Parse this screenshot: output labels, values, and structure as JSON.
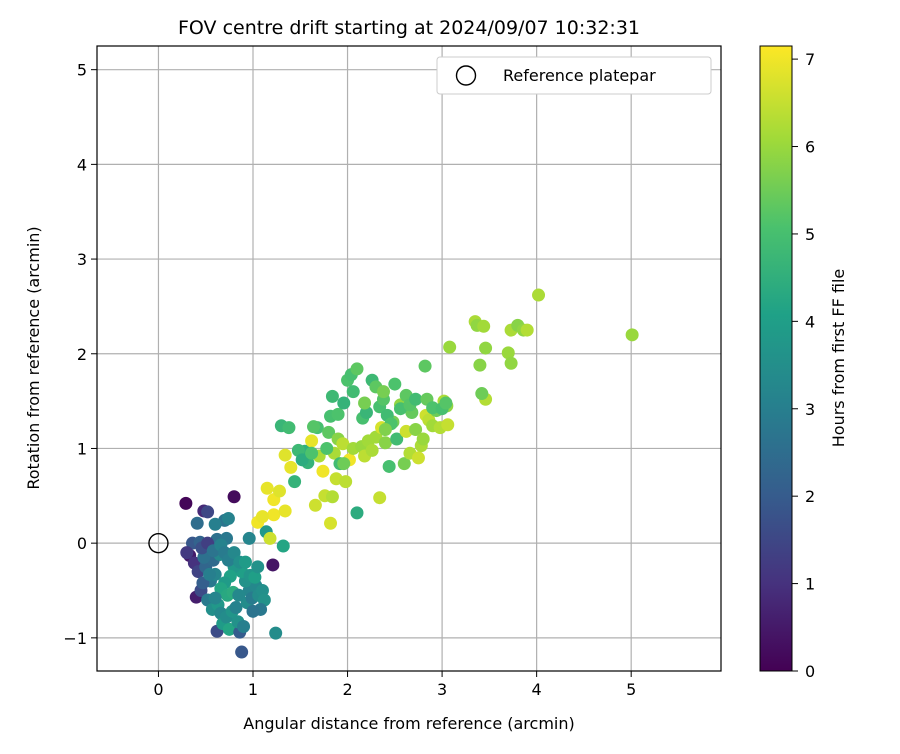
{
  "chart_data": {
    "type": "scatter",
    "title": "FOV centre drift starting at 2024/09/07 10:32:31",
    "xlabel": "Angular distance from reference (arcmin)",
    "ylabel": "Rotation from reference (arcmin)",
    "xlim": [
      -0.65,
      5.95
    ],
    "ylim": [
      -1.35,
      5.25
    ],
    "xticks": [
      0,
      1,
      2,
      3,
      4,
      5
    ],
    "yticks": [
      -1,
      0,
      1,
      2,
      3,
      4,
      5
    ],
    "grid": true,
    "legend": {
      "position": "top-right",
      "entries": [
        "Reference platepar"
      ]
    },
    "reference_point": {
      "name": "Reference platepar",
      "x": 0,
      "y": 0
    },
    "colorbar": {
      "label": "Hours from first FF file",
      "colormap": "viridis",
      "range": [
        0,
        7.15
      ],
      "ticks": [
        0,
        1,
        2,
        3,
        4,
        5,
        6,
        7
      ]
    },
    "points": [
      [
        0.29,
        0.42,
        0.1
      ],
      [
        0.8,
        0.49,
        0.2
      ],
      [
        0.48,
        0.34,
        0.8
      ],
      [
        0.52,
        0.33,
        1.5
      ],
      [
        0.41,
        0.21,
        2.5
      ],
      [
        0.7,
        0.24,
        2.7
      ],
      [
        0.74,
        0.26,
        3.1
      ],
      [
        0.6,
        0.2,
        3.0
      ],
      [
        0.36,
        0.0,
        1.9
      ],
      [
        0.44,
        0.01,
        2.2
      ],
      [
        0.54,
        -0.02,
        2.0
      ],
      [
        0.62,
        0.04,
        2.6
      ],
      [
        0.72,
        0.05,
        2.8
      ],
      [
        0.33,
        -0.13,
        0.5
      ],
      [
        0.3,
        -0.1,
        1.2
      ],
      [
        0.38,
        -0.21,
        1.0
      ],
      [
        0.4,
        -0.57,
        0.6
      ],
      [
        0.45,
        -0.5,
        1.6
      ],
      [
        0.42,
        -0.3,
        1.4
      ],
      [
        0.5,
        -0.25,
        2.3
      ],
      [
        0.58,
        -0.18,
        2.4
      ],
      [
        0.65,
        -0.12,
        3.3
      ],
      [
        0.55,
        -0.4,
        2.8
      ],
      [
        0.6,
        -0.33,
        3.2
      ],
      [
        0.47,
        -0.42,
        2.1
      ],
      [
        0.52,
        -0.6,
        2.9
      ],
      [
        0.57,
        -0.7,
        3.5
      ],
      [
        0.63,
        -0.65,
        3.8
      ],
      [
        0.66,
        -0.74,
        3.3
      ],
      [
        0.62,
        -0.93,
        1.6
      ],
      [
        0.68,
        -0.85,
        3.9
      ],
      [
        0.72,
        -0.78,
        3.4
      ],
      [
        0.75,
        -0.91,
        4.2
      ],
      [
        0.78,
        -0.72,
        3.7
      ],
      [
        0.82,
        -0.68,
        3.1
      ],
      [
        0.86,
        -0.94,
        2.0
      ],
      [
        0.88,
        -1.15,
        1.9
      ],
      [
        0.84,
        -0.83,
        3.6
      ],
      [
        0.9,
        -0.88,
        3.0
      ],
      [
        0.94,
        -0.63,
        3.4
      ],
      [
        0.96,
        -0.5,
        3.2
      ],
      [
        0.99,
        -0.58,
        2.9
      ],
      [
        1.03,
        -0.45,
        3.3
      ],
      [
        1.06,
        -0.55,
        3.4
      ],
      [
        1.1,
        -0.5,
        3.5
      ],
      [
        1.12,
        -0.6,
        3.6
      ],
      [
        1.08,
        -0.7,
        2.8
      ],
      [
        1.0,
        -0.72,
        2.7
      ],
      [
        0.92,
        -0.4,
        3.6
      ],
      [
        0.88,
        -0.3,
        4.0
      ],
      [
        0.8,
        -0.25,
        3.8
      ],
      [
        0.76,
        -0.35,
        4.1
      ],
      [
        0.7,
        -0.42,
        3.9
      ],
      [
        0.66,
        -0.48,
        4.2
      ],
      [
        0.73,
        -0.55,
        4.3
      ],
      [
        0.79,
        -0.52,
        4.4
      ],
      [
        0.85,
        -0.55,
        3.3
      ],
      [
        0.6,
        -0.58,
        3.2
      ],
      [
        0.54,
        -0.33,
        3.0
      ],
      [
        0.48,
        -0.15,
        2.6
      ],
      [
        0.46,
        -0.05,
        1.7
      ],
      [
        0.52,
        0.0,
        1.3
      ],
      [
        0.58,
        -0.08,
        2.7
      ],
      [
        0.66,
        -0.02,
        3.1
      ],
      [
        0.7,
        -0.1,
        2.9
      ],
      [
        0.74,
        -0.18,
        3.0
      ],
      [
        0.8,
        -0.1,
        3.3
      ],
      [
        0.86,
        -0.2,
        3.5
      ],
      [
        0.92,
        -0.2,
        3.9
      ],
      [
        0.97,
        -0.34,
        3.7
      ],
      [
        0.96,
        0.05,
        3.2
      ],
      [
        1.02,
        -0.36,
        4.0
      ],
      [
        1.05,
        -0.25,
        3.6
      ],
      [
        1.14,
        0.12,
        3.8
      ],
      [
        1.21,
        -0.23,
        0.4
      ],
      [
        1.24,
        -0.95,
        3.4
      ],
      [
        1.32,
        -0.03,
        4.2
      ],
      [
        1.3,
        1.24,
        4.7
      ],
      [
        1.38,
        1.22,
        4.9
      ],
      [
        1.44,
        0.65,
        4.6
      ],
      [
        1.22,
        0.3,
        7.0
      ],
      [
        1.05,
        0.22,
        7.0
      ],
      [
        1.1,
        0.28,
        6.9
      ],
      [
        1.18,
        0.05,
        6.6
      ],
      [
        1.15,
        0.58,
        6.9
      ],
      [
        1.22,
        0.46,
        7.0
      ],
      [
        1.28,
        0.55,
        6.8
      ],
      [
        1.34,
        0.34,
        6.9
      ],
      [
        1.34,
        0.93,
        6.8
      ],
      [
        1.4,
        0.8,
        6.9
      ],
      [
        1.55,
        0.97,
        4.5
      ],
      [
        1.58,
        0.85,
        4.6
      ],
      [
        1.62,
        1.08,
        6.9
      ],
      [
        1.66,
        0.4,
        6.6
      ],
      [
        1.7,
        0.92,
        6.2
      ],
      [
        1.68,
        1.22,
        5.0
      ],
      [
        1.74,
        0.76,
        7.0
      ],
      [
        1.76,
        0.5,
        6.5
      ],
      [
        1.8,
        1.17,
        5.3
      ],
      [
        1.82,
        0.21,
        6.7
      ],
      [
        1.86,
        0.95,
        6.2
      ],
      [
        1.84,
        0.49,
        6.3
      ],
      [
        1.88,
        0.68,
        6.5
      ],
      [
        1.9,
        1.1,
        5.8
      ],
      [
        1.92,
        0.84,
        4.9
      ],
      [
        1.95,
        1.05,
        6.4
      ],
      [
        1.98,
        0.65,
        6.4
      ],
      [
        2.02,
        0.88,
        7.0
      ],
      [
        2.06,
        1.0,
        6.1
      ],
      [
        2.1,
        0.32,
        4.4
      ],
      [
        2.15,
        1.02,
        6.0
      ],
      [
        2.18,
        0.92,
        6.4
      ],
      [
        2.22,
        1.08,
        6.1
      ],
      [
        2.26,
        0.98,
        6.2
      ],
      [
        2.3,
        1.12,
        6.1
      ],
      [
        2.34,
        0.48,
        6.5
      ],
      [
        2.36,
        1.22,
        6.7
      ],
      [
        2.4,
        1.06,
        5.8
      ],
      [
        2.44,
        0.81,
        5.0
      ],
      [
        2.48,
        1.28,
        5.6
      ],
      [
        2.52,
        1.1,
        4.9
      ],
      [
        2.56,
        1.46,
        5.9
      ],
      [
        2.6,
        0.84,
        5.6
      ],
      [
        2.62,
        1.18,
        6.6
      ],
      [
        2.66,
        0.95,
        6.3
      ],
      [
        2.68,
        1.38,
        5.4
      ],
      [
        2.72,
        1.2,
        5.8
      ],
      [
        2.75,
        0.9,
        6.6
      ],
      [
        2.78,
        1.03,
        6.2
      ],
      [
        2.8,
        1.1,
        6.0
      ],
      [
        2.83,
        1.35,
        6.6
      ],
      [
        2.86,
        1.3,
        6.4
      ],
      [
        2.9,
        1.24,
        6.1
      ],
      [
        2.94,
        1.4,
        5.5
      ],
      [
        2.98,
        1.22,
        6.3
      ],
      [
        3.02,
        1.5,
        6.2
      ],
      [
        3.05,
        1.45,
        5.9
      ],
      [
        3.06,
        1.25,
        6.5
      ],
      [
        3.08,
        2.07,
        6.0
      ],
      [
        3.35,
        2.34,
        6.2
      ],
      [
        3.37,
        2.3,
        5.9
      ],
      [
        3.4,
        1.88,
        5.8
      ],
      [
        3.44,
        2.29,
        6.1
      ],
      [
        3.46,
        1.52,
        6.3
      ],
      [
        3.46,
        2.06,
        5.9
      ],
      [
        3.7,
        2.01,
        6.0
      ],
      [
        3.73,
        2.25,
        6.2
      ],
      [
        3.73,
        1.9,
        5.9
      ],
      [
        3.8,
        2.3,
        5.8
      ],
      [
        3.86,
        2.25,
        5.9
      ],
      [
        3.9,
        2.25,
        6.3
      ],
      [
        4.02,
        2.62,
        6.2
      ],
      [
        5.01,
        2.2,
        6.0
      ],
      [
        1.48,
        0.98,
        4.8
      ],
      [
        1.52,
        0.88,
        4.4
      ],
      [
        1.62,
        0.95,
        5.1
      ],
      [
        1.64,
        1.23,
        5.2
      ],
      [
        1.78,
        1.0,
        5.1
      ],
      [
        1.82,
        1.34,
        5.0
      ],
      [
        1.84,
        1.55,
        4.8
      ],
      [
        1.9,
        1.36,
        5.1
      ],
      [
        1.96,
        1.48,
        4.6
      ],
      [
        2.0,
        1.72,
        5.1
      ],
      [
        2.04,
        1.78,
        5.0
      ],
      [
        2.06,
        1.6,
        4.9
      ],
      [
        2.1,
        1.84,
        5.3
      ],
      [
        2.16,
        1.32,
        5.0
      ],
      [
        2.2,
        1.38,
        4.7
      ],
      [
        2.26,
        1.72,
        4.8
      ],
      [
        2.3,
        1.65,
        5.3
      ],
      [
        2.34,
        1.44,
        5.0
      ],
      [
        2.38,
        1.52,
        5.2
      ],
      [
        2.42,
        1.35,
        4.9
      ],
      [
        2.46,
        1.26,
        5.1
      ],
      [
        2.5,
        1.68,
        5.1
      ],
      [
        2.56,
        1.42,
        5.0
      ],
      [
        2.62,
        1.56,
        5.3
      ],
      [
        2.66,
        1.46,
        5.2
      ],
      [
        2.72,
        1.52,
        4.9
      ],
      [
        2.82,
        1.87,
        5.3
      ],
      [
        2.84,
        1.52,
        5.4
      ],
      [
        2.9,
        1.43,
        5.1
      ],
      [
        3.0,
        1.42,
        5.0
      ],
      [
        3.04,
        1.48,
        5.2
      ],
      [
        3.42,
        1.58,
        5.5
      ],
      [
        2.38,
        1.6,
        5.6
      ],
      [
        2.18,
        1.48,
        5.6
      ],
      [
        1.96,
        0.84,
        5.5
      ],
      [
        2.4,
        1.2,
        5.7
      ]
    ]
  }
}
